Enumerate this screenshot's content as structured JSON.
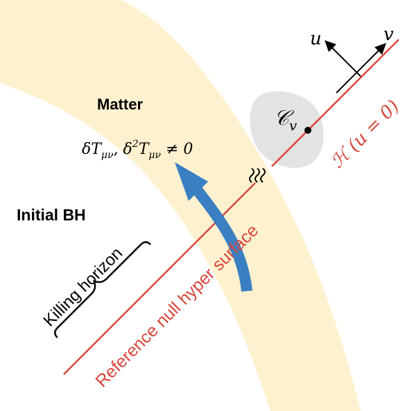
{
  "labels": {
    "matter": "Matter",
    "perturbation": "δT",
    "perturbation_sub": "μν",
    "perturbation_mid": ", δ",
    "perturbation_sup": "2",
    "perturbation_T": "T",
    "perturbation_sub2": "μν",
    "perturbation_end": " ≠ 0",
    "initial_bh": "Initial BH",
    "killing_horizon": "Killing horizon",
    "reference_surface": "Reference null hyper surface",
    "horizon_H": "ℋ",
    "horizon_eq": " (u = 0)",
    "cross_section": "𝒞",
    "cross_section_sub": "v",
    "axis_u": "u",
    "axis_v": "v",
    "gap_marker": "≈"
  },
  "colors": {
    "matter_band": "#fdf1cf",
    "horizon_line": "#d8453a",
    "arrow": "#3a7fc1",
    "blob": "#e3e3e3",
    "text": "#000000"
  }
}
